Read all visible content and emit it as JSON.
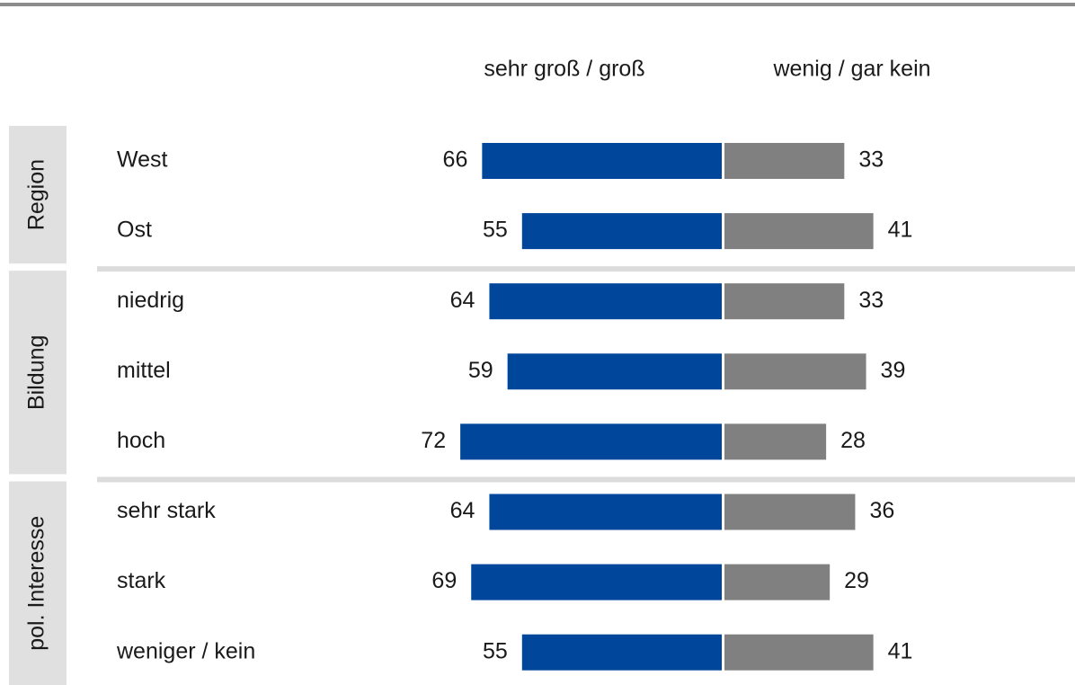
{
  "chart_data": {
    "type": "diverging_bar",
    "series": [
      {
        "name": "sehr groß / groß",
        "color": "#00469b",
        "values": [
          66,
          55,
          64,
          59,
          72,
          64,
          69,
          55
        ]
      },
      {
        "name": "wenig / gar kein",
        "color": "#808080",
        "values": [
          33,
          41,
          33,
          39,
          28,
          36,
          29,
          41
        ]
      }
    ],
    "groups": [
      {
        "name": "Region",
        "categories": [
          "West",
          "Ost"
        ]
      },
      {
        "name": "Bildung",
        "categories": [
          "niedrig",
          "mittel",
          "hoch"
        ]
      },
      {
        "name": "pol. Interesse",
        "categories": [
          "sehr stark",
          "stark",
          "weniger / kein"
        ]
      }
    ]
  }
}
